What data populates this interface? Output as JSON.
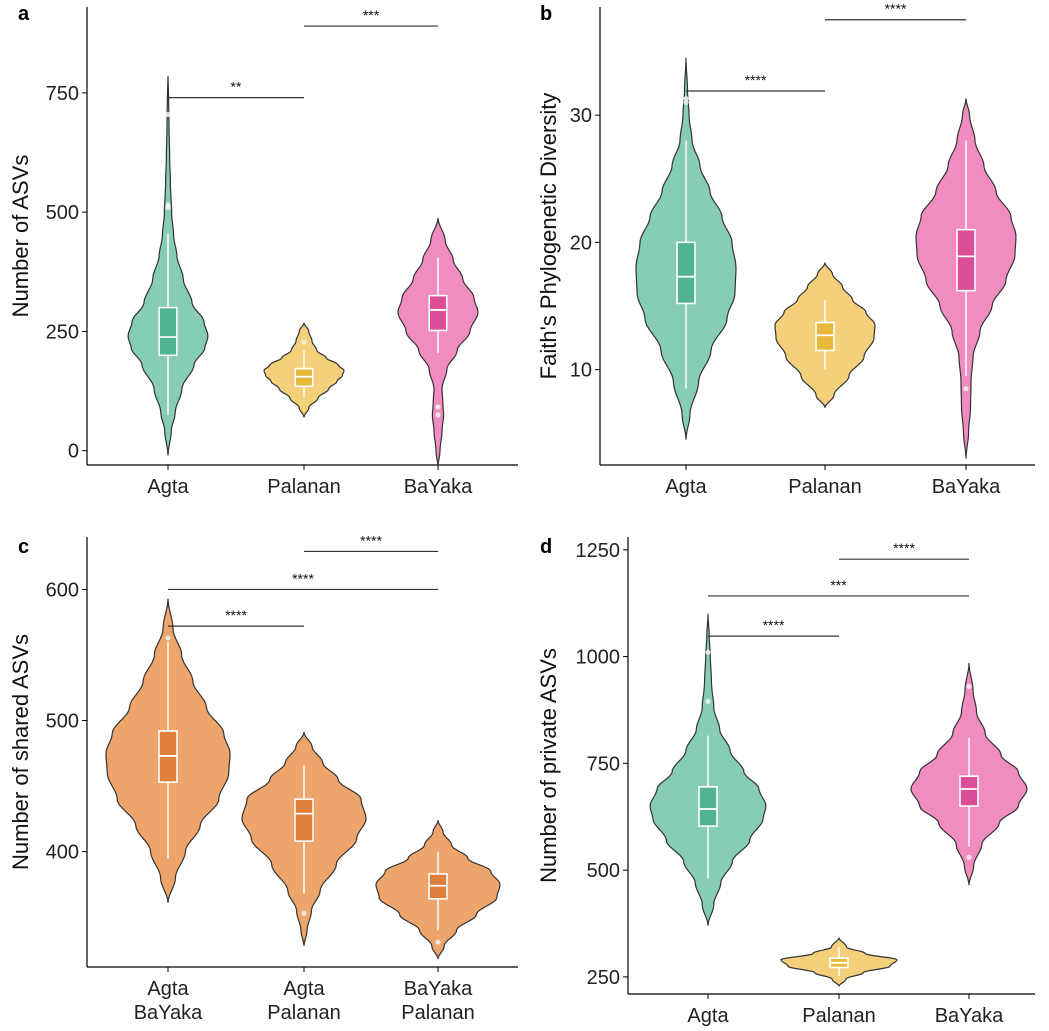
{
  "colors": {
    "Agta": "#86cdb3",
    "Agta_box": "#4fb48f",
    "Palanan": "#f3d079",
    "Palanan_box": "#e7b93d",
    "BaYaka": "#f08cc0",
    "BaYaka_box": "#dc4f98",
    "shared": "#eea56c",
    "shared_box": "#e07e3c",
    "outline": "#333333",
    "axis": "#000000"
  },
  "chart_data": [
    {
      "panel": "a",
      "type": "violin",
      "ylabel": "Number of ASVs",
      "ylim": [
        -30,
        930
      ],
      "yticks": [
        0,
        250,
        500,
        750
      ],
      "categories": [
        "Agta",
        "Palanan",
        "BaYaka"
      ],
      "series": [
        {
          "color": "Agta",
          "range": [
            -10,
            785
          ],
          "box": {
            "q1": 200,
            "median": 238,
            "q3": 300,
            "whisker_low": 75,
            "whisker_high": 455
          },
          "density": [
            [
              -10,
              0
            ],
            [
              40,
              0.08
            ],
            [
              80,
              0.18
            ],
            [
              130,
              0.35
            ],
            [
              180,
              0.65
            ],
            [
              215,
              0.92
            ],
            [
              240,
              1
            ],
            [
              270,
              0.9
            ],
            [
              310,
              0.6
            ],
            [
              360,
              0.38
            ],
            [
              410,
              0.22
            ],
            [
              450,
              0.14
            ],
            [
              500,
              0.09
            ],
            [
              560,
              0.06
            ],
            [
              620,
              0.04
            ],
            [
              680,
              0.025
            ],
            [
              740,
              0.015
            ],
            [
              785,
              0
            ]
          ],
          "outliers": [
            510,
            515,
            705
          ]
        },
        {
          "color": "Palanan",
          "range": [
            70,
            268
          ],
          "box": {
            "q1": 135,
            "median": 155,
            "q3": 172,
            "whisker_low": 112,
            "whisker_high": 210
          },
          "density": [
            [
              70,
              0
            ],
            [
              90,
              0.12
            ],
            [
              110,
              0.35
            ],
            [
              130,
              0.62
            ],
            [
              145,
              0.82
            ],
            [
              158,
              0.96
            ],
            [
              168,
              1
            ],
            [
              180,
              0.85
            ],
            [
              195,
              0.55
            ],
            [
              210,
              0.32
            ],
            [
              230,
              0.2
            ],
            [
              250,
              0.12
            ],
            [
              268,
              0
            ]
          ],
          "outliers": [
            228
          ]
        },
        {
          "color": "BaYaka",
          "range": [
            -35,
            488
          ],
          "box": {
            "q1": 252,
            "median": 295,
            "q3": 325,
            "whisker_low": 205,
            "whisker_high": 405
          },
          "density": [
            [
              -35,
              0
            ],
            [
              0,
              0.05
            ],
            [
              40,
              0.1
            ],
            [
              75,
              0.14
            ],
            [
              100,
              0.12
            ],
            [
              130,
              0.1
            ],
            [
              170,
              0.22
            ],
            [
              210,
              0.48
            ],
            [
              250,
              0.8
            ],
            [
              290,
              1
            ],
            [
              320,
              0.9
            ],
            [
              360,
              0.62
            ],
            [
              400,
              0.38
            ],
            [
              440,
              0.18
            ],
            [
              488,
              0
            ]
          ],
          "outliers": [
            75,
            92
          ]
        }
      ],
      "significance": [
        {
          "label": "**",
          "from": 0,
          "to": 1,
          "y": 740
        },
        {
          "label": "***",
          "from": 1,
          "to": 2,
          "y": 890
        }
      ]
    },
    {
      "panel": "b",
      "type": "violin",
      "ylabel": "Faith's Phylogenetic Diversity",
      "ylim": [
        2.5,
        38.5
      ],
      "yticks": [
        10,
        20,
        30
      ],
      "categories": [
        "Agta",
        "Palanan",
        "BaYaka"
      ],
      "series": [
        {
          "color": "Agta",
          "range": [
            4.5,
            34.5
          ],
          "box": {
            "q1": 15.2,
            "median": 17.3,
            "q3": 20.0,
            "whisker_low": 8.5,
            "whisker_high": 28.0
          },
          "density": [
            [
              4.5,
              0
            ],
            [
              6.5,
              0.08
            ],
            [
              9,
              0.25
            ],
            [
              11.5,
              0.5
            ],
            [
              14,
              0.82
            ],
            [
              16,
              0.98
            ],
            [
              18,
              1
            ],
            [
              20,
              0.92
            ],
            [
              22,
              0.72
            ],
            [
              24,
              0.48
            ],
            [
              26,
              0.28
            ],
            [
              28,
              0.12
            ],
            [
              30,
              0.06
            ],
            [
              32,
              0.03
            ],
            [
              34.5,
              0
            ]
          ],
          "outliers": [
            31,
            31.3
          ]
        },
        {
          "color": "Palanan",
          "range": [
            7,
            18.4
          ],
          "box": {
            "q1": 11.5,
            "median": 12.7,
            "q3": 13.7,
            "whisker_low": 10.0,
            "whisker_high": 15.5
          },
          "density": [
            [
              7,
              0
            ],
            [
              8,
              0.18
            ],
            [
              9.5,
              0.48
            ],
            [
              11,
              0.78
            ],
            [
              12.5,
              0.98
            ],
            [
              13.5,
              1
            ],
            [
              14.5,
              0.82
            ],
            [
              15.5,
              0.55
            ],
            [
              16.5,
              0.35
            ],
            [
              17.5,
              0.15
            ],
            [
              18.4,
              0
            ]
          ],
          "outliers": []
        },
        {
          "color": "BaYaka",
          "range": [
            3,
            31.3
          ],
          "box": {
            "q1": 16.2,
            "median": 18.9,
            "q3": 21.0,
            "whisker_low": 9.5,
            "whisker_high": 28.0
          },
          "density": [
            [
              3,
              0
            ],
            [
              5,
              0.05
            ],
            [
              7,
              0.09
            ],
            [
              9,
              0.1
            ],
            [
              11,
              0.14
            ],
            [
              13,
              0.28
            ],
            [
              15,
              0.52
            ],
            [
              17,
              0.8
            ],
            [
              19,
              0.98
            ],
            [
              20.5,
              1
            ],
            [
              22,
              0.9
            ],
            [
              24,
              0.6
            ],
            [
              26,
              0.36
            ],
            [
              28,
              0.18
            ],
            [
              30,
              0.07
            ],
            [
              31.3,
              0
            ]
          ],
          "outliers": [
            8.5
          ]
        }
      ],
      "significance": [
        {
          "label": "****",
          "from": 0,
          "to": 1,
          "y": 31.9
        },
        {
          "label": "****",
          "from": 1,
          "to": 2,
          "y": 37.5
        }
      ]
    },
    {
      "panel": "c",
      "type": "violin",
      "ylabel": "Number of shared ASVs",
      "ylim": [
        312,
        640
      ],
      "yticks": [
        400,
        500,
        600
      ],
      "categories": [
        "Agta\nBaYaka",
        "Agta\nPalanan",
        "BaYaka\nPalanan"
      ],
      "series": [
        {
          "color": "shared",
          "range": [
            361,
            593
          ],
          "box": {
            "q1": 453,
            "median": 473,
            "q3": 492,
            "whisker_low": 395,
            "whisker_high": 560
          },
          "density": [
            [
              361,
              0
            ],
            [
              380,
              0.12
            ],
            [
              400,
              0.28
            ],
            [
              420,
              0.52
            ],
            [
              440,
              0.82
            ],
            [
              460,
              0.98
            ],
            [
              475,
              1
            ],
            [
              490,
              0.9
            ],
            [
              510,
              0.62
            ],
            [
              530,
              0.4
            ],
            [
              550,
              0.22
            ],
            [
              570,
              0.08
            ],
            [
              593,
              0
            ]
          ],
          "outliers": [
            563
          ]
        },
        {
          "color": "shared",
          "range": [
            328,
            491
          ],
          "box": {
            "q1": 408,
            "median": 429,
            "q3": 440,
            "whisker_low": 368,
            "whisker_high": 466
          },
          "density": [
            [
              328,
              0
            ],
            [
              340,
              0.05
            ],
            [
              355,
              0.12
            ],
            [
              370,
              0.26
            ],
            [
              390,
              0.52
            ],
            [
              410,
              0.85
            ],
            [
              425,
              1
            ],
            [
              440,
              0.92
            ],
            [
              455,
              0.55
            ],
            [
              468,
              0.3
            ],
            [
              480,
              0.13
            ],
            [
              491,
              0
            ]
          ],
          "outliers": [
            353
          ]
        },
        {
          "color": "shared",
          "range": [
            318,
            424
          ],
          "box": {
            "q1": 364,
            "median": 374,
            "q3": 383,
            "whisker_low": 340,
            "whisker_high": 400
          },
          "density": [
            [
              318,
              0
            ],
            [
              328,
              0.1
            ],
            [
              340,
              0.3
            ],
            [
              352,
              0.62
            ],
            [
              365,
              0.95
            ],
            [
              375,
              1
            ],
            [
              385,
              0.85
            ],
            [
              395,
              0.48
            ],
            [
              405,
              0.22
            ],
            [
              415,
              0.08
            ],
            [
              424,
              0
            ]
          ],
          "outliers": [
            331
          ]
        }
      ],
      "significance": [
        {
          "label": "****",
          "from": 0,
          "to": 1,
          "y": 572
        },
        {
          "label": "****",
          "from": 0,
          "to": 2,
          "y": 600
        },
        {
          "label": "****",
          "from": 1,
          "to": 2,
          "y": 629
        }
      ]
    },
    {
      "panel": "d",
      "type": "violin",
      "ylabel": "Number of private ASVs",
      "ylim": [
        210,
        1280
      ],
      "yticks": [
        250,
        500,
        750,
        1000,
        1250
      ],
      "categories": [
        "Agta",
        "Palanan",
        "BaYaka"
      ],
      "series": [
        {
          "color": "Agta",
          "range": [
            370,
            1100
          ],
          "box": {
            "q1": 603,
            "median": 643,
            "q3": 695,
            "whisker_low": 480,
            "whisker_high": 815
          },
          "density": [
            [
              370,
              0
            ],
            [
              420,
              0.1
            ],
            [
              470,
              0.22
            ],
            [
              520,
              0.42
            ],
            [
              570,
              0.72
            ],
            [
              620,
              0.95
            ],
            [
              650,
              1
            ],
            [
              690,
              0.88
            ],
            [
              730,
              0.62
            ],
            [
              780,
              0.38
            ],
            [
              830,
              0.2
            ],
            [
              880,
              0.1
            ],
            [
              940,
              0.06
            ],
            [
              1000,
              0.04
            ],
            [
              1050,
              0.02
            ],
            [
              1100,
              0
            ]
          ],
          "outliers": [
            895,
            1010
          ]
        },
        {
          "color": "Palanan",
          "range": [
            228,
            342
          ],
          "box": {
            "q1": 272,
            "median": 283,
            "q3": 294,
            "whisker_low": 252,
            "whisker_high": 320
          },
          "density": [
            [
              228,
              0
            ],
            [
              245,
              0.12
            ],
            [
              260,
              0.42
            ],
            [
              275,
              0.88
            ],
            [
              290,
              1
            ],
            [
              305,
              0.45
            ],
            [
              320,
              0.13
            ],
            [
              342,
              0
            ]
          ],
          "outliers": []
        },
        {
          "color": "BaYaka",
          "range": [
            465,
            985
          ],
          "box": {
            "q1": 650,
            "median": 690,
            "q3": 720,
            "whisker_low": 555,
            "whisker_high": 810
          },
          "density": [
            [
              465,
              0
            ],
            [
              510,
              0.08
            ],
            [
              560,
              0.22
            ],
            [
              610,
              0.52
            ],
            [
              650,
              0.85
            ],
            [
              690,
              1
            ],
            [
              730,
              0.85
            ],
            [
              770,
              0.55
            ],
            [
              820,
              0.28
            ],
            [
              870,
              0.13
            ],
            [
              920,
              0.07
            ],
            [
              985,
              0
            ]
          ],
          "outliers": [
            530,
            930
          ]
        }
      ],
      "significance": [
        {
          "label": "****",
          "from": 0,
          "to": 1,
          "y": 1048
        },
        {
          "label": "***",
          "from": 0,
          "to": 2,
          "y": 1142
        },
        {
          "label": "****",
          "from": 1,
          "to": 2,
          "y": 1228
        }
      ]
    }
  ]
}
